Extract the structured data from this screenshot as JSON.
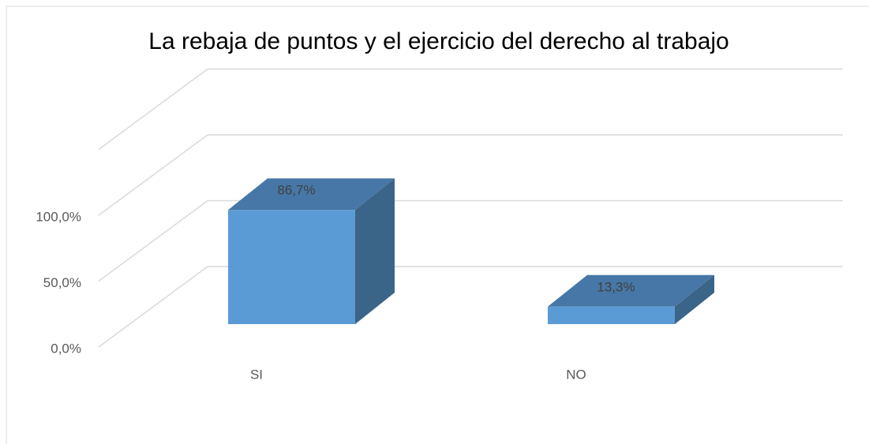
{
  "chart_data": {
    "type": "bar3d",
    "title": "La rebaja de puntos y el ejercicio del derecho al trabajo",
    "categories": [
      "SI",
      "NO"
    ],
    "values": [
      86.7,
      13.3
    ],
    "value_labels": [
      "86,7%",
      "13,3%"
    ],
    "colors": {
      "front": "#5b9bd5",
      "top": "#4677a6",
      "side": "#3b6489"
    },
    "ylim": [
      0,
      150
    ],
    "yticks": [
      {
        "value": 0,
        "label": "0,0%"
      },
      {
        "value": 50,
        "label": "50,0%"
      },
      {
        "value": 100,
        "label": "100,0%"
      }
    ],
    "grid": true
  }
}
